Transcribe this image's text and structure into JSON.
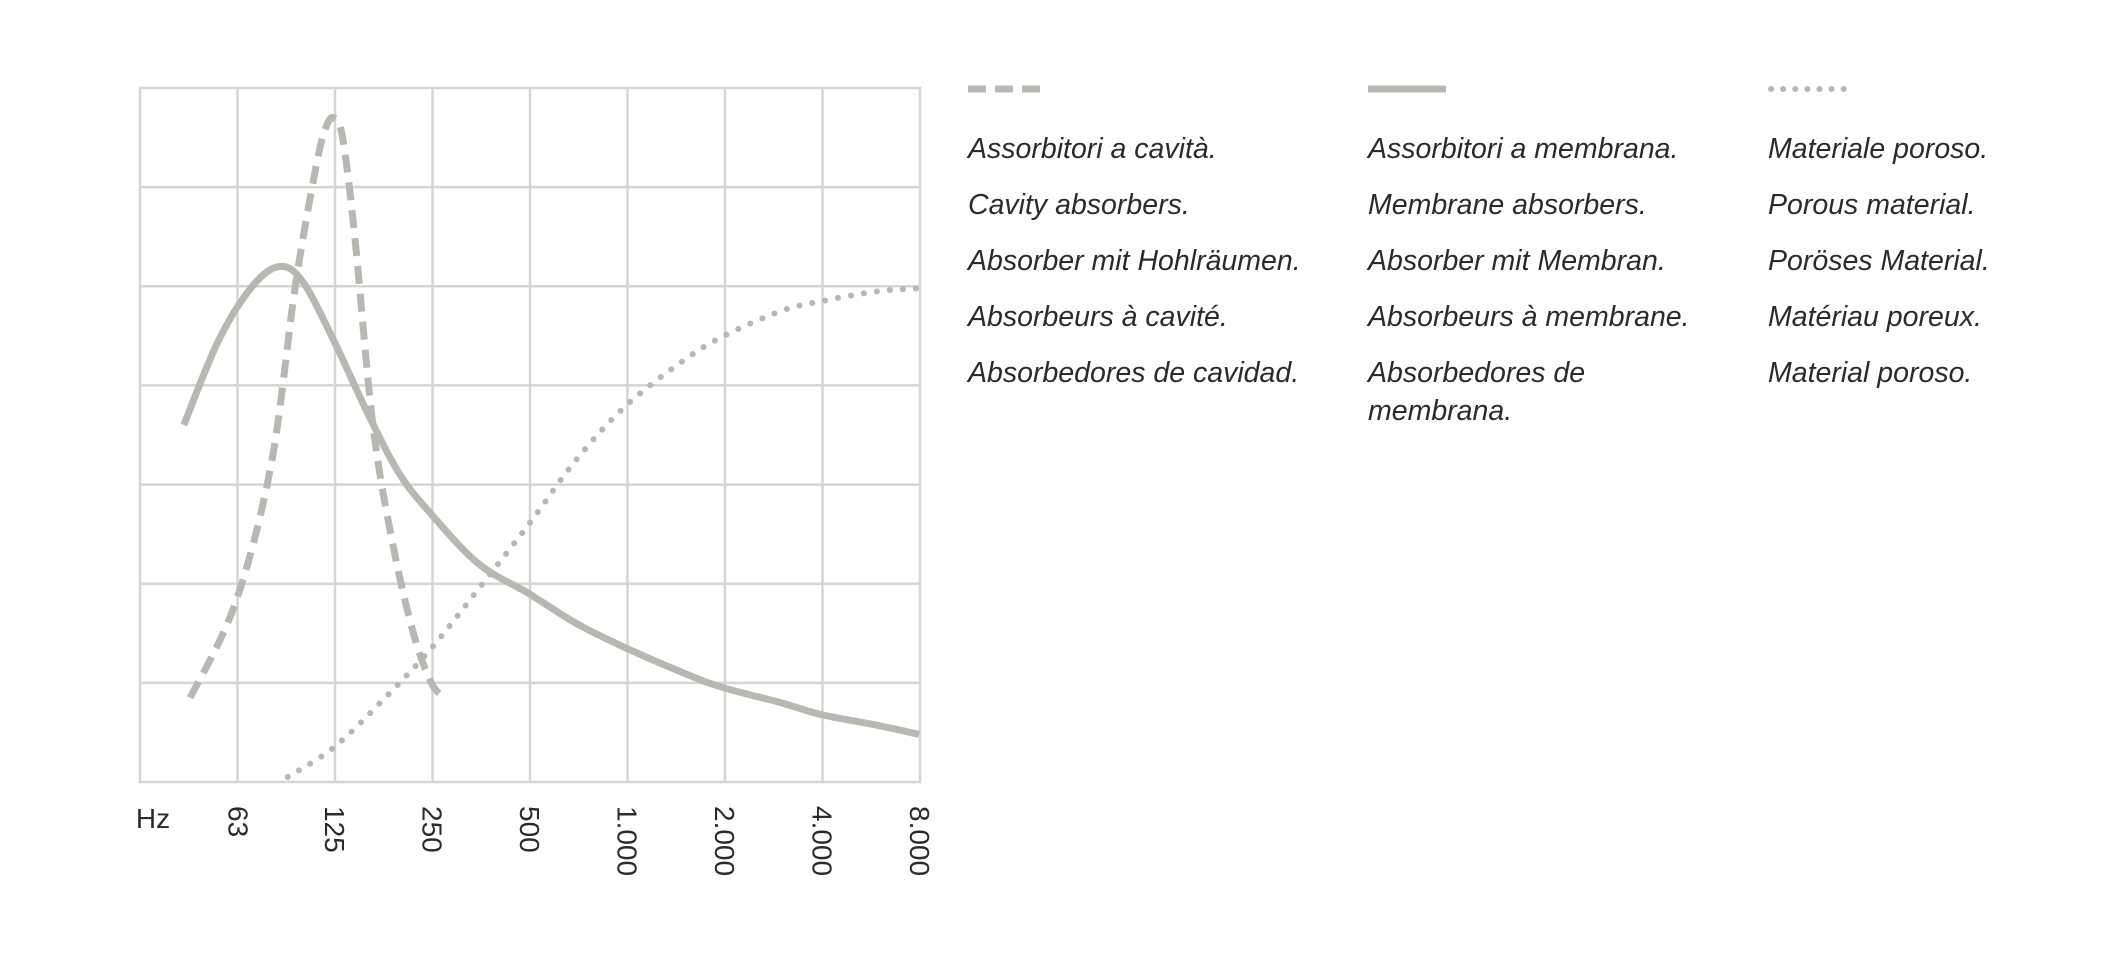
{
  "chart_data": {
    "type": "line",
    "x_unit_label": "Hz",
    "x_scale": "log",
    "categories": [
      "63",
      "125",
      "250",
      "500",
      "1.000",
      "2.000",
      "4.000",
      "8.000"
    ],
    "x_values": [
      63,
      125,
      250,
      500,
      1000,
      2000,
      4000,
      8000
    ],
    "ylim": [
      0,
      7
    ],
    "y_tick_labels": [],
    "grid": true,
    "legend_placement": "right",
    "colors": {
      "line": "#b8b8b3",
      "grid": "#d5d5d2",
      "axis_text": "#2b2b2b"
    },
    "series": [
      {
        "key": "cavity",
        "style": "dashed",
        "labels": [
          "Assorbitori a cavità.",
          "Cavity absorbers.",
          "Absorber mit Hohlräumen.",
          "Absorbeurs à cavité.",
          "Absorbedores de cavidad."
        ],
        "points": [
          [
            45,
            0.85
          ],
          [
            62,
            1.8
          ],
          [
            80,
            3.2
          ],
          [
            95,
            5.0
          ],
          [
            110,
            6.2
          ],
          [
            118,
            6.6
          ],
          [
            125,
            6.7
          ],
          [
            133,
            6.5
          ],
          [
            145,
            5.5
          ],
          [
            165,
            3.6
          ],
          [
            190,
            2.4
          ],
          [
            220,
            1.5
          ],
          [
            250,
            1.0
          ],
          [
            275,
            0.85
          ]
        ]
      },
      {
        "key": "membrane",
        "style": "solid",
        "labels": [
          "Assorbitori a membrana.",
          "Membrane absorbers.",
          "Absorber mit Membran.",
          "Absorbeurs à membrane.",
          "Absorbedores de membrana."
        ],
        "points": [
          [
            43,
            3.6
          ],
          [
            55,
            4.45
          ],
          [
            70,
            5.0
          ],
          [
            85,
            5.2
          ],
          [
            100,
            5.05
          ],
          [
            125,
            4.45
          ],
          [
            160,
            3.7
          ],
          [
            200,
            3.1
          ],
          [
            250,
            2.7
          ],
          [
            350,
            2.2
          ],
          [
            500,
            1.9
          ],
          [
            700,
            1.6
          ],
          [
            1000,
            1.35
          ],
          [
            1500,
            1.1
          ],
          [
            2000,
            0.95
          ],
          [
            3000,
            0.8
          ],
          [
            4000,
            0.68
          ],
          [
            6000,
            0.57
          ],
          [
            8000,
            0.48
          ]
        ]
      },
      {
        "key": "porous",
        "style": "dotted",
        "labels": [
          "Materiale poroso.",
          "Porous material.",
          "Poröses Material.",
          "Matériau poreux.",
          "Material poroso."
        ],
        "points": [
          [
            90,
            0.05
          ],
          [
            125,
            0.35
          ],
          [
            180,
            0.85
          ],
          [
            250,
            1.35
          ],
          [
            350,
            1.95
          ],
          [
            500,
            2.6
          ],
          [
            700,
            3.25
          ],
          [
            1000,
            3.8
          ],
          [
            1500,
            4.25
          ],
          [
            2000,
            4.5
          ],
          [
            3000,
            4.75
          ],
          [
            4000,
            4.85
          ],
          [
            6000,
            4.95
          ],
          [
            8000,
            4.98
          ]
        ]
      }
    ]
  }
}
